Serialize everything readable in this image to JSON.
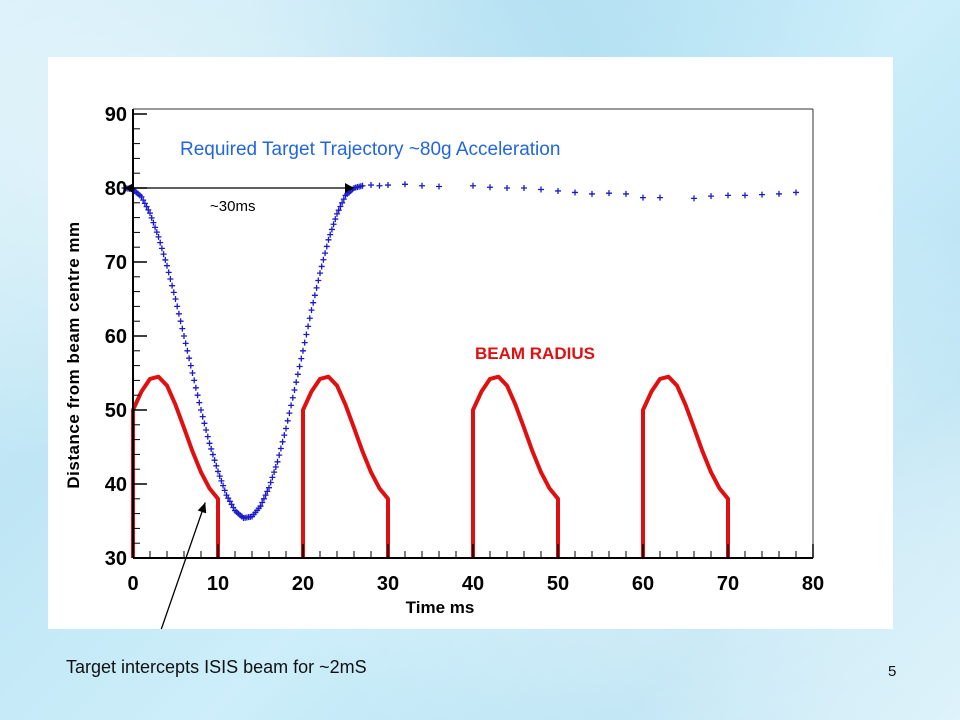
{
  "slide": {
    "number": "5"
  },
  "colors": {
    "trajectory": "#1a1acc",
    "beam": "#e01010",
    "title": "#2266dd",
    "axis": "#000000"
  },
  "chart_data": {
    "type": "scatter",
    "title": "Required Target Trajectory ~80g Acceleration",
    "xlabel": "Time ms",
    "ylabel": "Distance from beam centre mm",
    "xlim": [
      0,
      80
    ],
    "ylim": [
      30,
      90
    ],
    "x_ticks": [
      "0",
      "10",
      "20",
      "30",
      "40",
      "50",
      "60",
      "70",
      "80"
    ],
    "y_ticks": [
      "30",
      "40",
      "50",
      "60",
      "70",
      "80",
      "90"
    ],
    "grid": false,
    "legend": "none",
    "series": [
      {
        "label": "Target trajectory",
        "kind": "scatter",
        "points": [
          [
            -1,
            80
          ],
          [
            0,
            79.8
          ],
          [
            1,
            78.8
          ],
          [
            2,
            76.6
          ],
          [
            3,
            73.4
          ],
          [
            4,
            69.5
          ],
          [
            5,
            65
          ],
          [
            6,
            60
          ],
          [
            7,
            55
          ],
          [
            8,
            50
          ],
          [
            9,
            45.5
          ],
          [
            10,
            41.7
          ],
          [
            11,
            38.5
          ],
          [
            12,
            36.4
          ],
          [
            13,
            35.4
          ],
          [
            14,
            35.6
          ],
          [
            15,
            37
          ],
          [
            16,
            39.5
          ],
          [
            17,
            43
          ],
          [
            18,
            47.5
          ],
          [
            19,
            52.7
          ],
          [
            20,
            58
          ],
          [
            21,
            63.5
          ],
          [
            22,
            68.5
          ],
          [
            23,
            73
          ],
          [
            24,
            76.5
          ],
          [
            25,
            79
          ],
          [
            26,
            80
          ],
          [
            27,
            80.3
          ],
          [
            28,
            80.4
          ],
          [
            29,
            80.3
          ],
          [
            30,
            80.4
          ],
          [
            32,
            80.5
          ],
          [
            34,
            80.3
          ],
          [
            36,
            80.2
          ],
          [
            40,
            80.3
          ],
          [
            42,
            80.1
          ],
          [
            44,
            80
          ],
          [
            46,
            80
          ],
          [
            48,
            79.8
          ],
          [
            50,
            79.6
          ],
          [
            52,
            79.4
          ],
          [
            54,
            79.2
          ],
          [
            56,
            79.3
          ],
          [
            58,
            79.2
          ],
          [
            60,
            78.7
          ],
          [
            62,
            78.7
          ],
          [
            66,
            78.6
          ],
          [
            68,
            78.9
          ],
          [
            70,
            79
          ],
          [
            72,
            79
          ],
          [
            74,
            79.1
          ],
          [
            76,
            79.2
          ],
          [
            78,
            79.4
          ]
        ]
      },
      {
        "label": "BEAM RADIUS",
        "kind": "line",
        "segments": [
          [
            [
              0,
              30
            ],
            [
              0,
              50
            ],
            [
              1,
              52.5
            ],
            [
              2,
              54.2
            ],
            [
              3,
              54.5
            ],
            [
              4,
              53.3
            ],
            [
              5,
              50.7
            ],
            [
              6,
              47.6
            ],
            [
              7,
              44.4
            ],
            [
              8,
              41.6
            ],
            [
              9,
              39.4
            ],
            [
              10,
              38
            ],
            [
              10,
              30
            ]
          ],
          [
            [
              20,
              30
            ],
            [
              20,
              50
            ],
            [
              21,
              52.5
            ],
            [
              22,
              54.2
            ],
            [
              23,
              54.5
            ],
            [
              24,
              53.3
            ],
            [
              25,
              50.7
            ],
            [
              26,
              47.6
            ],
            [
              27,
              44.4
            ],
            [
              28,
              41.6
            ],
            [
              29,
              39.4
            ],
            [
              30,
              38
            ],
            [
              30,
              30
            ]
          ],
          [
            [
              40,
              30
            ],
            [
              40,
              50
            ],
            [
              41,
              52.5
            ],
            [
              42,
              54.2
            ],
            [
              43,
              54.5
            ],
            [
              44,
              53.3
            ],
            [
              45,
              50.7
            ],
            [
              46,
              47.6
            ],
            [
              47,
              44.4
            ],
            [
              48,
              41.6
            ],
            [
              49,
              39.4
            ],
            [
              50,
              38
            ],
            [
              50,
              30
            ]
          ],
          [
            [
              60,
              30
            ],
            [
              60,
              50
            ],
            [
              61,
              52.5
            ],
            [
              62,
              54.2
            ],
            [
              63,
              54.5
            ],
            [
              64,
              53.3
            ],
            [
              65,
              50.7
            ],
            [
              66,
              47.6
            ],
            [
              67,
              44.4
            ],
            [
              68,
              41.6
            ],
            [
              69,
              39.4
            ],
            [
              70,
              38
            ],
            [
              70,
              30
            ]
          ]
        ]
      }
    ],
    "annotations": [
      {
        "text": "BEAM RADIUS",
        "x": 40,
        "y": 58.6
      },
      {
        "text": "~30ms",
        "x": 8.5,
        "y": 77.5
      },
      {
        "text": "Target intercepts ISIS beam for ~2mS",
        "x": 2,
        "y": 16
      }
    ],
    "double_arrow": {
      "x1": -1,
      "x2": 26,
      "y": 80
    },
    "pointer_arrow": {
      "from": [
        2,
        16
      ],
      "to": [
        8.5,
        37.5
      ]
    }
  }
}
